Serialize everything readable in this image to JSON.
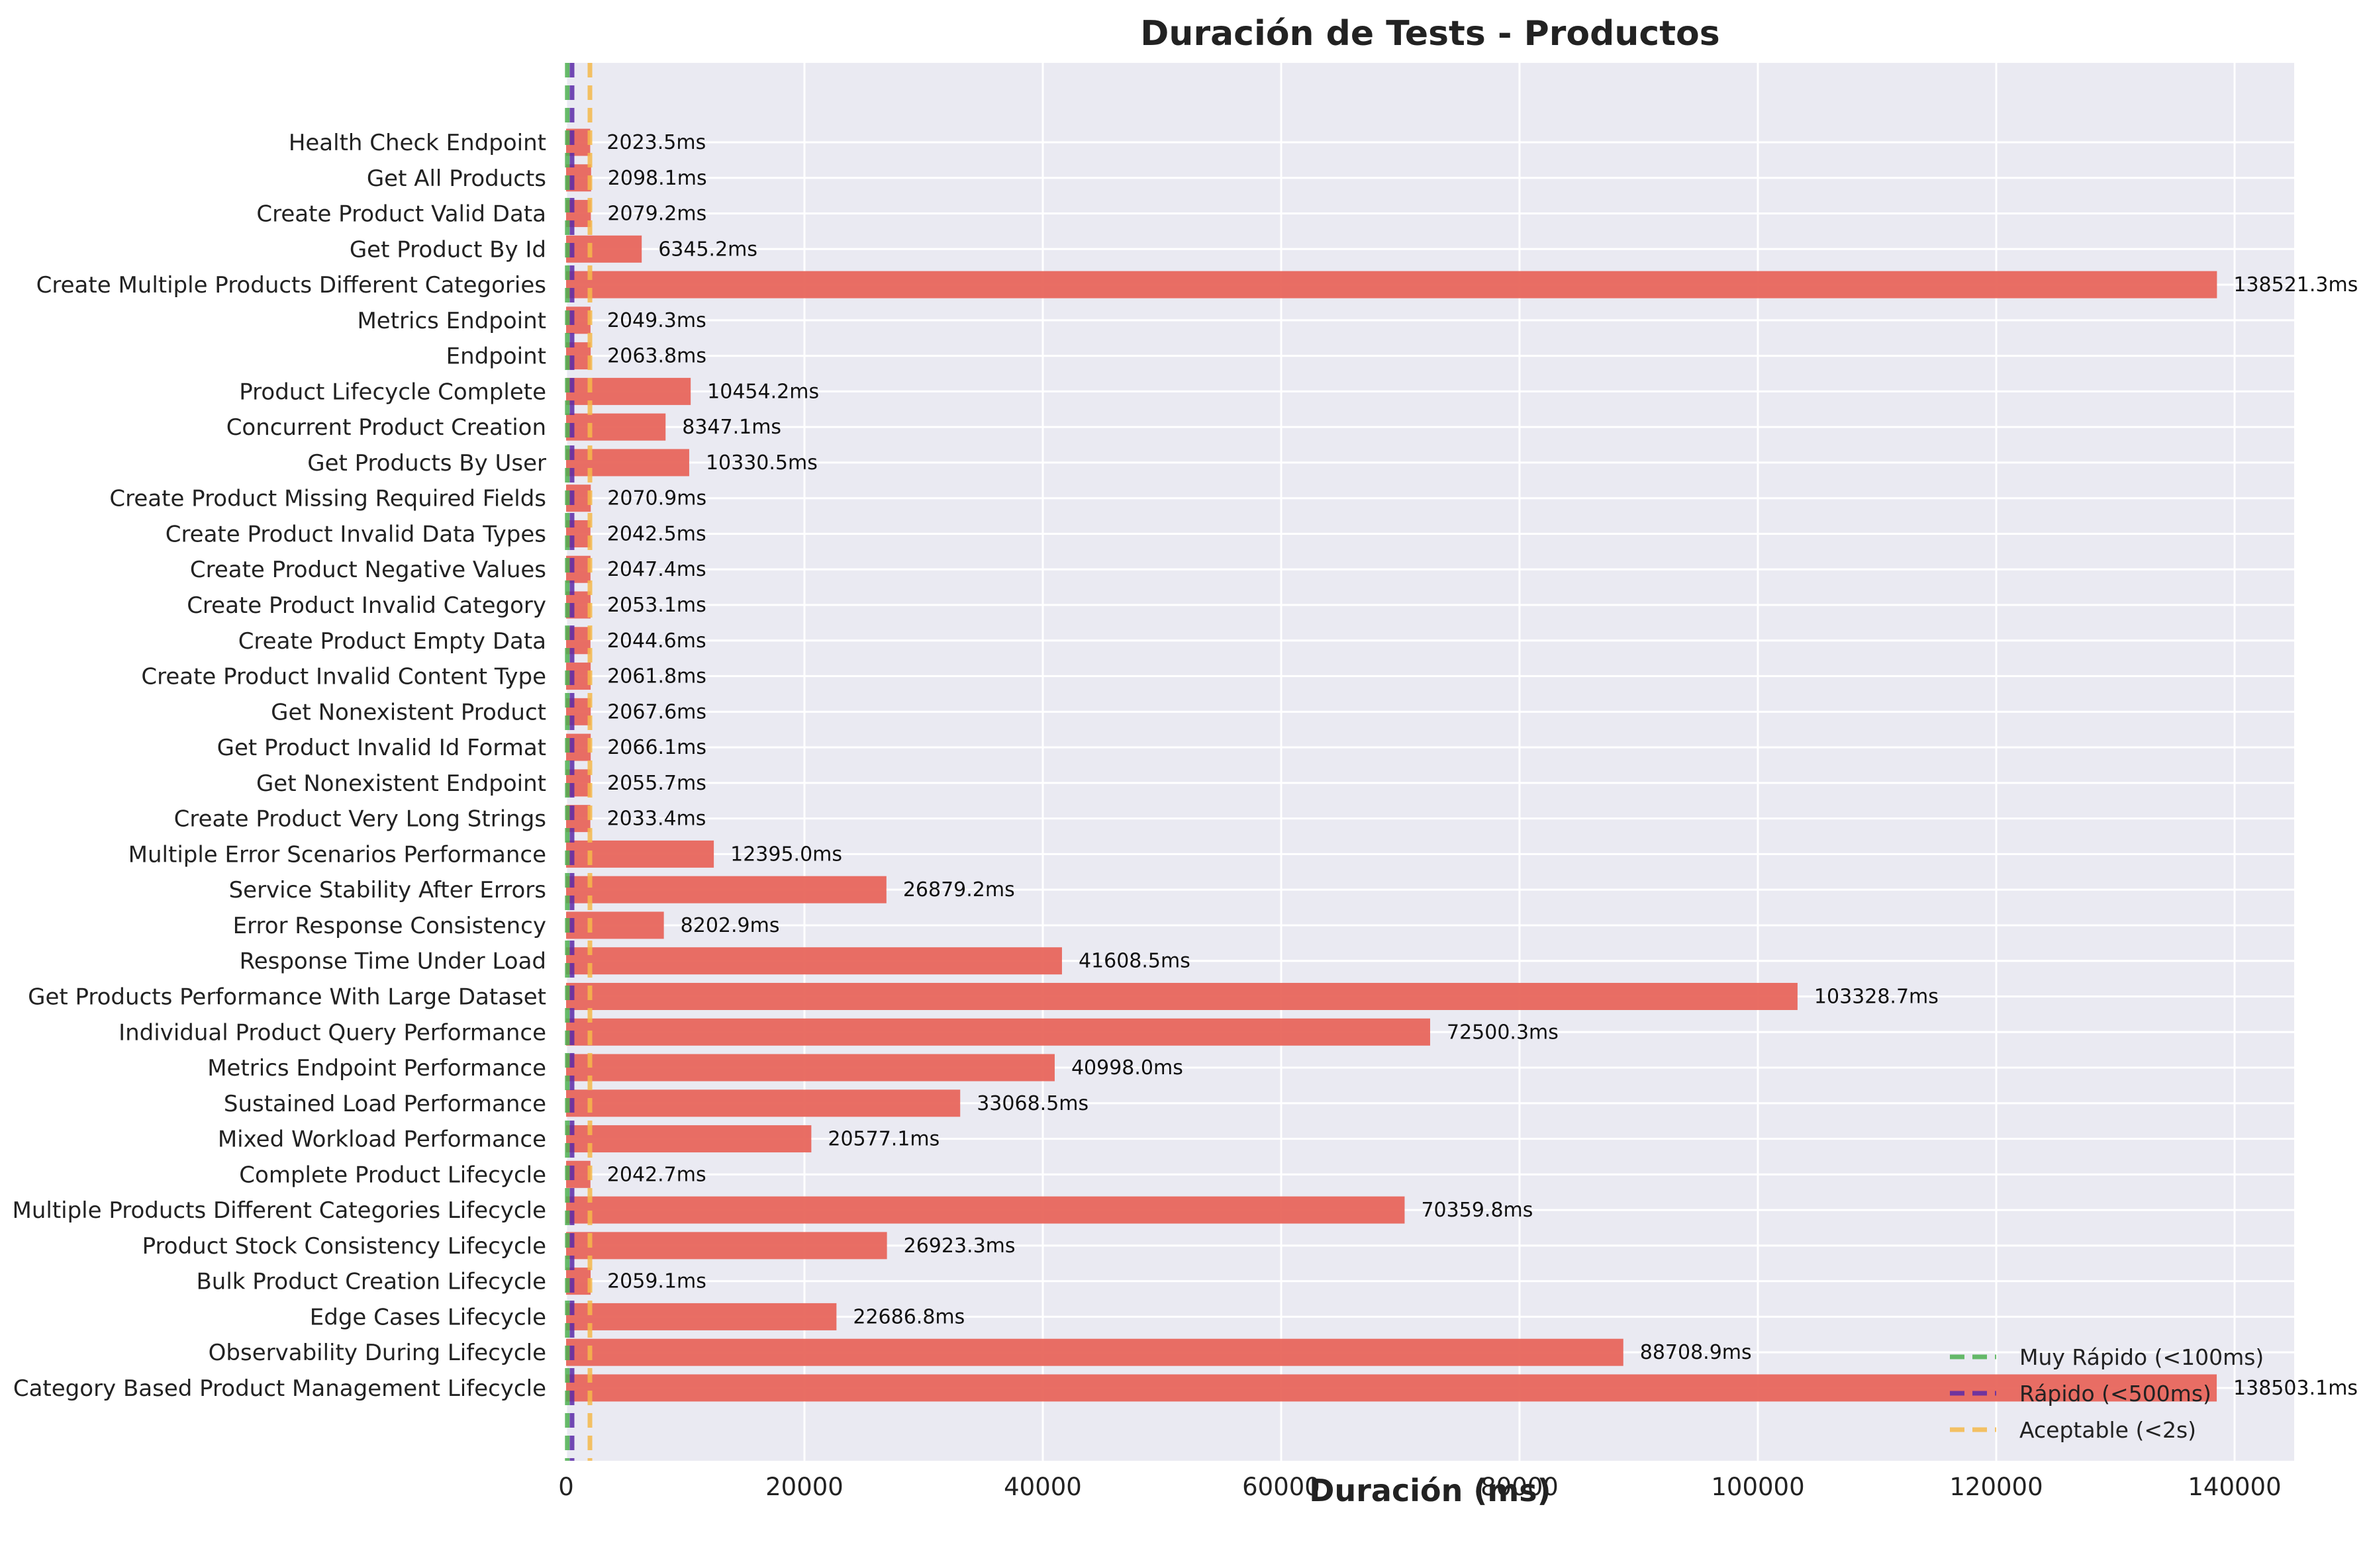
{
  "chart_data": {
    "type": "bar",
    "orientation": "horizontal",
    "title": "Duración de Tests - Productos",
    "xlabel": "Duración (ms)",
    "ylabel": "",
    "xlim": [
      0,
      145000
    ],
    "xticks": [
      0,
      20000,
      40000,
      60000,
      80000,
      100000,
      120000,
      140000
    ],
    "grid": true,
    "legend_position": "bottom-right",
    "bar_color": "#e8665c",
    "categories": [
      "Health Check Endpoint",
      "Get All Products",
      "Create Product Valid Data",
      "Get Product By Id",
      "Create Multiple Products Different Categories",
      "Metrics Endpoint",
      "Endpoint",
      "Product Lifecycle Complete",
      "Concurrent Product Creation",
      "Get Products By User",
      "Create Product Missing Required Fields",
      "Create Product Invalid Data Types",
      "Create Product Negative Values",
      "Create Product Invalid Category",
      "Create Product Empty Data",
      "Create Product Invalid Content Type",
      "Get Nonexistent Product",
      "Get Product Invalid Id Format",
      "Get Nonexistent Endpoint",
      "Create Product Very Long Strings",
      "Multiple Error Scenarios Performance",
      "Service Stability After Errors",
      "Error Response Consistency",
      "Response Time Under Load",
      "Get Products Performance With Large Dataset",
      "Individual Product Query Performance",
      "Metrics Endpoint Performance",
      "Sustained Load Performance",
      "Mixed Workload Performance",
      "Complete Product Lifecycle",
      "Multiple Products Different Categories Lifecycle",
      "Product Stock Consistency Lifecycle",
      "Bulk Product Creation Lifecycle",
      "Edge Cases Lifecycle",
      "Observability During Lifecycle",
      "Category Based Product Management Lifecycle"
    ],
    "values": [
      2023.5,
      2098.1,
      2079.2,
      6345.2,
      138521.3,
      2049.3,
      2063.8,
      10454.2,
      8347.1,
      10330.5,
      2070.9,
      2042.5,
      2047.4,
      2053.1,
      2044.6,
      2061.8,
      2067.6,
      2066.1,
      2055.7,
      2033.4,
      12395.0,
      26879.2,
      8202.9,
      41608.5,
      103328.7,
      72500.3,
      40998.0,
      33068.5,
      20577.1,
      2042.7,
      70359.8,
      26923.3,
      2059.1,
      22686.8,
      88708.9,
      138503.1
    ],
    "value_labels": [
      "2023.5ms",
      "2098.1ms",
      "2079.2ms",
      "6345.2ms",
      "138521.3ms",
      "2049.3ms",
      "2063.8ms",
      "10454.2ms",
      "8347.1ms",
      "10330.5ms",
      "2070.9ms",
      "2042.5ms",
      "2047.4ms",
      "2053.1ms",
      "2044.6ms",
      "2061.8ms",
      "2067.6ms",
      "2066.1ms",
      "2055.7ms",
      "2033.4ms",
      "12395.0ms",
      "26879.2ms",
      "8202.9ms",
      "41608.5ms",
      "103328.7ms",
      "72500.3ms",
      "40998.0ms",
      "33068.5ms",
      "20577.1ms",
      "2042.7ms",
      "70359.8ms",
      "26923.3ms",
      "2059.1ms",
      "22686.8ms",
      "88708.9ms",
      "138503.1ms"
    ],
    "reference_lines": [
      {
        "label": "Muy Rápido (<100ms)",
        "value": 100,
        "color": "#4caf50"
      },
      {
        "label": "Rápido (<500ms)",
        "value": 500,
        "color": "#5b2aa8"
      },
      {
        "label": "Aceptable (<2s)",
        "value": 2000,
        "color": "#f5b84a"
      }
    ]
  }
}
